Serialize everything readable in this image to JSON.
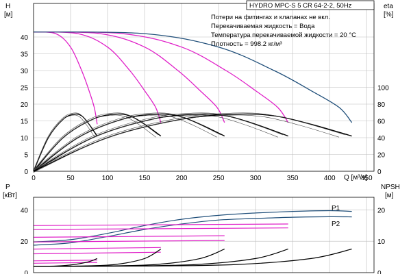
{
  "chart_data": [
    {
      "type": "line",
      "panel": "head",
      "title": "HYDRO MPC-S 5 CR 64-2-2, 50Hz",
      "notes": [
        "Потери на фитингах и клапанах не вкл.",
        "Перекачиваемая жидкость = Вода",
        "Температура перекачиваемой жидкости = 20 °C",
        "Плотность = 998.2 кг/м³"
      ],
      "xlabel": "Q [м³/ч]",
      "xlim": [
        0,
        460
      ],
      "x_ticks": [
        "0",
        "50",
        "100",
        "150",
        "200",
        "250",
        "300",
        "350",
        "400",
        "450"
      ],
      "y_left": {
        "label_line1": "H",
        "label_line2": "[м]",
        "lim": [
          0,
          50
        ],
        "ticks": [
          "0",
          "5",
          "10",
          "15",
          "20",
          "25",
          "30",
          "35",
          "40"
        ]
      },
      "y_right": {
        "label_line1": "eta",
        "label_line2": "[%]",
        "lim": [
          0,
          200
        ],
        "ticks": [
          "0",
          "20",
          "40",
          "60",
          "80",
          "100"
        ]
      },
      "grid": true,
      "series": [
        {
          "color": "#e020c8",
          "x": [
            0,
            30,
            50,
            65,
            75,
            82,
            86
          ],
          "y": [
            41.5,
            41,
            37,
            30,
            24,
            19,
            14
          ]
        },
        {
          "color": "#e020c8",
          "x": [
            0,
            60,
            100,
            130,
            150,
            165,
            172
          ],
          "y": [
            41.5,
            41,
            37,
            30,
            24,
            19,
            14.5
          ]
        },
        {
          "color": "#e020c8",
          "x": [
            0,
            90,
            150,
            195,
            225,
            248,
            258
          ],
          "y": [
            41.5,
            41,
            37,
            30,
            24,
            19,
            14.5
          ]
        },
        {
          "color": "#e020c8",
          "x": [
            0,
            120,
            200,
            260,
            300,
            330,
            344
          ],
          "y": [
            41.5,
            41,
            37,
            30,
            24,
            19,
            14.5
          ]
        },
        {
          "color": "#1f4e79",
          "x": [
            0,
            150,
            250,
            325,
            375,
            413,
            430
          ],
          "y": [
            41.5,
            41,
            37,
            30,
            24,
            19,
            14.5
          ]
        },
        {
          "color": "#000000",
          "x": [
            0,
            20,
            40,
            55,
            65,
            75,
            86
          ],
          "y": [
            0,
            10,
            15.5,
            17,
            16.5,
            14,
            10.5
          ]
        },
        {
          "color": "#000000",
          "x": [
            0,
            40,
            80,
            110,
            130,
            150,
            172
          ],
          "y": [
            0,
            10,
            15.5,
            17,
            16.5,
            14,
            10.5
          ]
        },
        {
          "color": "#000000",
          "x": [
            0,
            60,
            120,
            165,
            195,
            225,
            258
          ],
          "y": [
            0,
            10,
            15.5,
            17,
            16.5,
            14,
            10.5
          ]
        },
        {
          "color": "#000000",
          "x": [
            0,
            80,
            160,
            220,
            260,
            300,
            344
          ],
          "y": [
            0,
            10,
            15.5,
            17,
            16.5,
            14,
            10.5
          ]
        },
        {
          "color": "#000000",
          "x": [
            0,
            100,
            200,
            275,
            325,
            375,
            430
          ],
          "y": [
            0,
            10,
            15.5,
            17,
            16.5,
            14,
            10.5
          ]
        }
      ]
    },
    {
      "type": "line",
      "panel": "power_npsh",
      "xlim": [
        0,
        460
      ],
      "y_left": {
        "label_line1": "P",
        "label_line2": "[кВт]",
        "lim": [
          0,
          48
        ],
        "ticks": [
          "0",
          "20",
          "40"
        ]
      },
      "y_right": {
        "label_line1": "NPSH",
        "label_line2": "[м]",
        "lim": [
          0,
          24
        ],
        "ticks": [
          "0",
          "10",
          "20"
        ]
      },
      "grid": true,
      "labels": [
        "P1",
        "P2"
      ],
      "series": [
        {
          "name": "P1",
          "color": "#1f4e79",
          "x": [
            0,
            50,
            100,
            150,
            200,
            250,
            300,
            350,
            400,
            430
          ],
          "y": [
            19.5,
            21,
            25,
            30,
            34,
            36.5,
            38,
            39,
            39.5,
            39
          ]
        },
        {
          "name": "P2",
          "color": "#1f4e79",
          "x": [
            0,
            50,
            100,
            150,
            200,
            250,
            300,
            350,
            400,
            430
          ],
          "y": [
            17.5,
            19,
            23,
            27.5,
            31,
            33.5,
            34.5,
            35.3,
            35.6,
            35.5
          ]
        },
        {
          "color": "#e020c8",
          "x": [
            0,
            86
          ],
          "y": [
            7.5,
            8
          ]
        },
        {
          "color": "#e020c8",
          "x": [
            0,
            86
          ],
          "y": [
            6,
            6.5
          ]
        },
        {
          "color": "#e020c8",
          "x": [
            0,
            172
          ],
          "y": [
            15,
            16
          ]
        },
        {
          "color": "#e020c8",
          "x": [
            0,
            172
          ],
          "y": [
            12,
            13
          ]
        },
        {
          "color": "#e020c8",
          "x": [
            0,
            258
          ],
          "y": [
            22.5,
            23.5
          ]
        },
        {
          "color": "#e020c8",
          "x": [
            0,
            258
          ],
          "y": [
            19.5,
            20.5
          ]
        },
        {
          "color": "#e020c8",
          "x": [
            0,
            344
          ],
          "y": [
            30,
            31
          ]
        },
        {
          "color": "#e020c8",
          "x": [
            0,
            344
          ],
          "y": [
            27.5,
            28.5
          ]
        },
        {
          "color": "#000000",
          "x": [
            0,
            30,
            55,
            75,
            86
          ],
          "y": [
            2,
            2.1,
            2.6,
            3.5,
            4.5
          ]
        },
        {
          "color": "#000000",
          "x": [
            0,
            60,
            110,
            150,
            172
          ],
          "y": [
            2,
            2.1,
            2.6,
            4.5,
            7.5
          ]
        },
        {
          "color": "#000000",
          "x": [
            0,
            90,
            165,
            225,
            258
          ],
          "y": [
            2,
            2.1,
            2.6,
            4.5,
            7.5
          ]
        },
        {
          "color": "#000000",
          "x": [
            0,
            120,
            220,
            300,
            344
          ],
          "y": [
            2,
            2.1,
            2.6,
            4.5,
            7.5
          ]
        },
        {
          "color": "#000000",
          "x": [
            0,
            150,
            275,
            375,
            430
          ],
          "y": [
            2,
            2.1,
            2.6,
            4.5,
            7.5
          ]
        }
      ]
    }
  ]
}
